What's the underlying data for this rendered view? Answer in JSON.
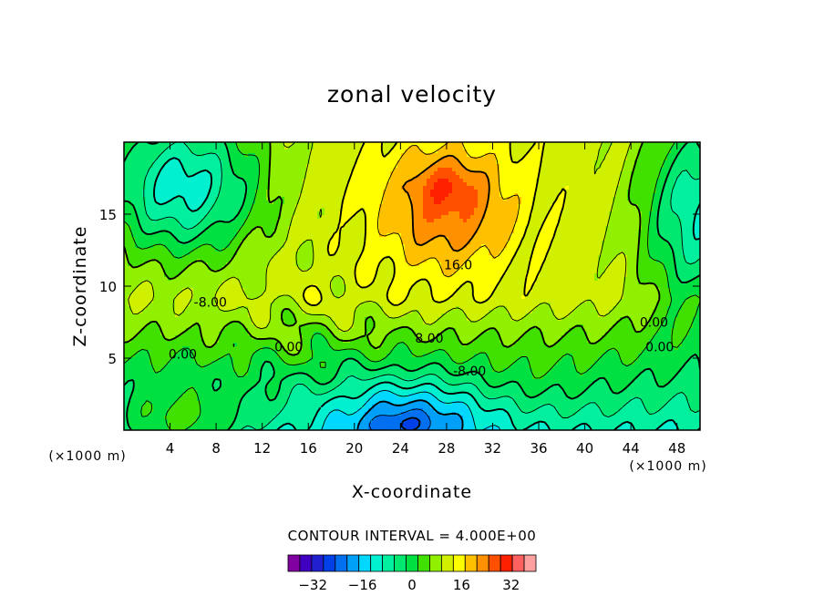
{
  "chart_data": {
    "type": "heatmap",
    "subtype": "filled-contour",
    "title": "zonal velocity",
    "xlabel": "X-coordinate",
    "ylabel": "Z-coordinate",
    "x_unit_label": "(×1000 m)",
    "y_unit_label": "(×1000 m)",
    "xlim": [
      0,
      50
    ],
    "ylim": [
      0,
      20
    ],
    "x_ticks": [
      4,
      8,
      12,
      16,
      20,
      24,
      28,
      32,
      36,
      40,
      44,
      48
    ],
    "y_ticks": [
      5,
      10,
      15
    ],
    "contour_interval_label": "CONTOUR INTERVAL = 4.000E+00",
    "contour_interval": 4,
    "contour_labels": [
      {
        "text": "16.0",
        "x": 29,
        "y": 11.5
      },
      {
        "text": "8.00",
        "x": 26.5,
        "y": 6.4
      },
      {
        "text": "-8.00",
        "x": 30,
        "y": 4.1
      },
      {
        "text": "-8.00",
        "x": 7.5,
        "y": 8.9
      },
      {
        "text": "0.00",
        "x": 5.1,
        "y": 5.3
      },
      {
        "text": "0.00",
        "x": 14.3,
        "y": 5.8
      },
      {
        "text": "0.00",
        "x": 46,
        "y": 7.5
      },
      {
        "text": "0.00",
        "x": 46.5,
        "y": 5.8
      }
    ],
    "colorbar": {
      "levels": [
        -40,
        -36,
        -32,
        -28,
        -24,
        -20,
        -16,
        -12,
        -8,
        -4,
        0,
        4,
        8,
        12,
        16,
        20,
        24,
        28,
        32,
        36,
        40
      ],
      "tick_values": [
        -32,
        -16,
        0,
        16,
        32
      ],
      "tick_labels": [
        "−32",
        "−16",
        "0",
        "16",
        "32"
      ],
      "colors": [
        "#8000a0",
        "#4000c0",
        "#2020d0",
        "#0040e8",
        "#0070f0",
        "#00a0f8",
        "#00d8ff",
        "#00f0d0",
        "#00f0a0",
        "#00e870",
        "#00e040",
        "#40e000",
        "#90f000",
        "#d0f000",
        "#ffff00",
        "#ffc000",
        "#ff9000",
        "#ff5000",
        "#ff2000",
        "#ff6060",
        "#ffa0a0"
      ]
    },
    "features": [
      {
        "kind": "max",
        "value": 26,
        "x": 28,
        "y": 17
      },
      {
        "kind": "min",
        "value": -26,
        "x": 24,
        "y": 0.6
      },
      {
        "kind": "min",
        "value": -18,
        "x": 5,
        "y": 17
      }
    ],
    "grid": false
  }
}
